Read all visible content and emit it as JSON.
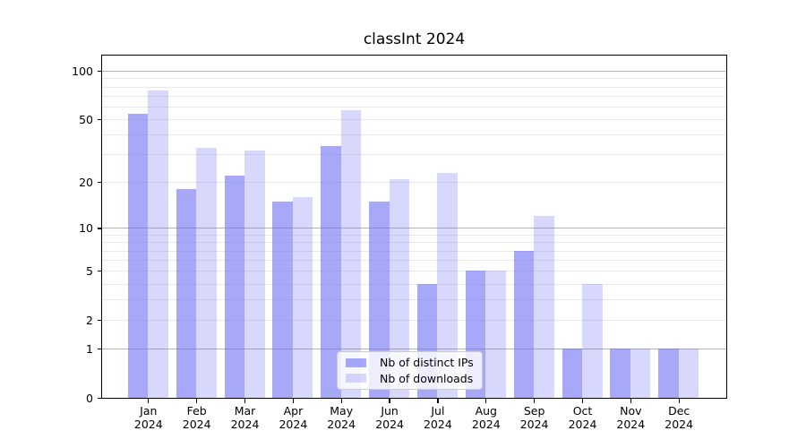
{
  "chart_data": {
    "type": "bar",
    "title": "classInt 2024",
    "categories": [
      "Jan",
      "Feb",
      "Mar",
      "Apr",
      "May",
      "Jun",
      "Jul",
      "Aug",
      "Sep",
      "Oct",
      "Nov",
      "Dec"
    ],
    "year_label": "2024",
    "series": [
      {
        "name": "Nb of distinct IPs",
        "color": "rgba(110,110,245,0.6)",
        "values": [
          54,
          18,
          22,
          15,
          34,
          15,
          4,
          5,
          7,
          1,
          1,
          1
        ]
      },
      {
        "name": "Nb of downloads",
        "color": "rgba(110,110,245,0.27)",
        "values": [
          76,
          33,
          32,
          16,
          57,
          21,
          23,
          5,
          12,
          4,
          1,
          1
        ]
      }
    ],
    "yscale": "log1p",
    "ylim": [
      0,
      100
    ],
    "ytick_labels": [
      "100",
      "50",
      "20",
      "10",
      "5",
      "2",
      "1",
      "0"
    ],
    "ytick_values": [
      100,
      50,
      20,
      10,
      5,
      2,
      1,
      0
    ],
    "minor_grid_values": [
      2,
      3,
      4,
      5,
      6,
      7,
      8,
      9,
      20,
      30,
      40,
      50,
      60,
      70,
      80,
      90
    ],
    "major_grid_values": [
      1,
      10,
      100
    ],
    "grid": "horizontal",
    "legend_position": "bottom-center",
    "colors": {
      "axis": "#000000",
      "major_grid": "#b3b3b3",
      "minor_grid": "#e8e8e8",
      "title_text": "#000000"
    }
  }
}
